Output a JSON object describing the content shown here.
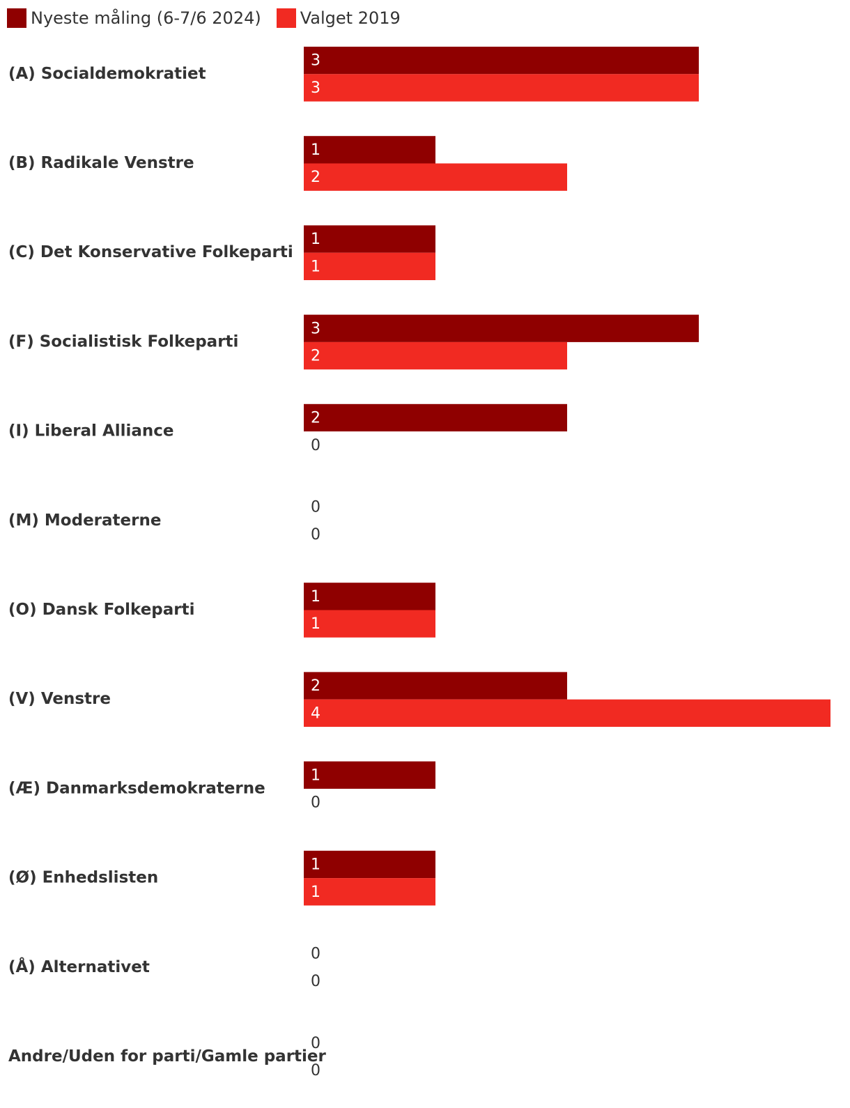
{
  "chart_data": {
    "type": "bar",
    "orientation": "horizontal",
    "categories": [
      "(A) Socialdemokratiet",
      "(B) Radikale Venstre",
      "(C) Det Konservative Folkeparti",
      "(F) Socialistisk Folkeparti",
      "(I) Liberal Alliance",
      "(M) Moderaterne",
      "(O) Dansk Folkeparti",
      "(V) Venstre",
      "(Æ) Danmarksdemokraterne",
      "(Ø) Enhedslisten",
      "(Å) Alternativet",
      "Andre/Uden for parti/Gamle partier"
    ],
    "series": [
      {
        "name": "Nyeste måling (6-7/6 2024)",
        "color": "#8f0000",
        "values": [
          3,
          1,
          1,
          3,
          2,
          0,
          1,
          2,
          1,
          1,
          0,
          0
        ]
      },
      {
        "name": "Valget 2019",
        "color": "#f12a22",
        "values": [
          3,
          2,
          1,
          2,
          0,
          0,
          1,
          4,
          0,
          1,
          0,
          0
        ]
      }
    ],
    "xlim": [
      0,
      4
    ],
    "grid": false,
    "legend": "top-left"
  }
}
